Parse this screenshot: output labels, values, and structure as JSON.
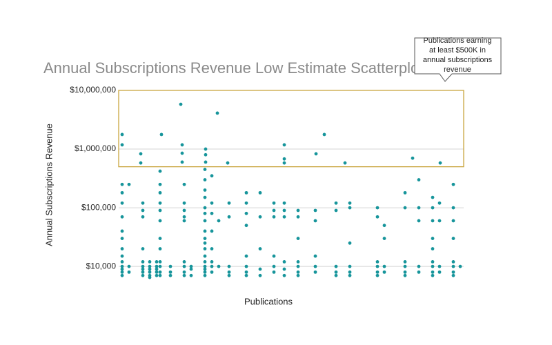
{
  "chart_data": {
    "type": "scatter",
    "title": "Annual Subscriptions Revenue Low Estimate Scatterplot",
    "x_label": "Publications",
    "y_label": "Annual Subscriptions Revenue",
    "annotation": {
      "text": "Publications earning at least $500K in annual subscriptions revenue",
      "ylim": [
        500000,
        10000000
      ]
    },
    "log_y": true,
    "grid": true,
    "xlim": [
      0,
      100
    ],
    "ylim": [
      6000,
      10000000
    ],
    "yticks": [
      {
        "value": 10000,
        "label": "$10,000"
      },
      {
        "value": 100000,
        "label": "$100,000"
      },
      {
        "value": 1000000,
        "label": "$1,000,000"
      },
      {
        "value": 10000000,
        "label": "$10,000,000"
      }
    ],
    "series": [
      {
        "name": "Publications",
        "color": "#17959b",
        "x": [
          1,
          1,
          6.4,
          6.4,
          12.4,
          18,
          18.4,
          18.4,
          18.4,
          25.2,
          25.2,
          25.2,
          28.6,
          31.6,
          48,
          48,
          48,
          57.2,
          59.6,
          65.6,
          85.2,
          93.2,
          1,
          1,
          1,
          1,
          1,
          1,
          1,
          1,
          1,
          1,
          1,
          1,
          1,
          3,
          3,
          3,
          7,
          7,
          7,
          7,
          7,
          7,
          7,
          7,
          7,
          9,
          9,
          9,
          9,
          9,
          9,
          11,
          11,
          11,
          11,
          11,
          12,
          12,
          12,
          12,
          12,
          12,
          12,
          12,
          12,
          12,
          12,
          12,
          15,
          15,
          15,
          19,
          19,
          19,
          19,
          19,
          19,
          19,
          19,
          19,
          21,
          21,
          21,
          25,
          25,
          25,
          25,
          25,
          25,
          25,
          25,
          25,
          25,
          25,
          25,
          25,
          25,
          25,
          25,
          25,
          27,
          27,
          27,
          27,
          27,
          27,
          27,
          27,
          29,
          29,
          32,
          32,
          32,
          32,
          32,
          37,
          37,
          37,
          37,
          37,
          37,
          37,
          37,
          41,
          41,
          41,
          41,
          41,
          45,
          45,
          45,
          45,
          45,
          45,
          48,
          48,
          48,
          48,
          48,
          48,
          52,
          52,
          52,
          52,
          52,
          52,
          52,
          57,
          57,
          57,
          57,
          57,
          63,
          63,
          63,
          63,
          63,
          67,
          67,
          67,
          67,
          67,
          67,
          75,
          75,
          75,
          75,
          75,
          75,
          77,
          77,
          77,
          77,
          83,
          83,
          83,
          83,
          83,
          83,
          87,
          87,
          87,
          87,
          87,
          91,
          91,
          91,
          91,
          91,
          91,
          91,
          91,
          91,
          93,
          93,
          93,
          93,
          97,
          97,
          97,
          97,
          97,
          97,
          97,
          97,
          99
        ],
        "values": [
          1770000,
          1180000,
          830000,
          580000,
          1770000,
          5800000,
          1180000,
          850000,
          600000,
          1000000,
          800000,
          600000,
          4100000,
          580000,
          1180000,
          680000,
          580000,
          830000,
          1770000,
          580000,
          700000,
          580000,
          250000,
          180000,
          120000,
          70000,
          40000,
          30000,
          20000,
          15000,
          12000,
          10000,
          9000,
          8000,
          7000,
          250000,
          10000,
          8000,
          120000,
          90000,
          70000,
          20000,
          12000,
          10000,
          9000,
          8000,
          7000,
          12000,
          10000,
          9000,
          8000,
          7000,
          6500,
          12000,
          10000,
          9000,
          8000,
          7000,
          420000,
          250000,
          180000,
          120000,
          90000,
          60000,
          30000,
          20000,
          12000,
          10000,
          8000,
          7000,
          10000,
          8000,
          7000,
          250000,
          120000,
          90000,
          70000,
          60000,
          12000,
          10000,
          8000,
          7000,
          10000,
          9000,
          7000,
          450000,
          300000,
          200000,
          150000,
          100000,
          80000,
          60000,
          40000,
          30000,
          25000,
          20000,
          15000,
          12000,
          10000,
          9000,
          8000,
          7000,
          350000,
          120000,
          80000,
          40000,
          20000,
          12000,
          10000,
          8000,
          60000,
          10000,
          120000,
          70000,
          10000,
          8000,
          7000,
          180000,
          120000,
          80000,
          50000,
          15000,
          10000,
          8000,
          7000,
          180000,
          70000,
          20000,
          9000,
          7000,
          120000,
          90000,
          70000,
          15000,
          10000,
          8000,
          120000,
          90000,
          70000,
          12000,
          9000,
          7000,
          90000,
          70000,
          30000,
          12000,
          10000,
          8000,
          7000,
          90000,
          60000,
          15000,
          10000,
          8000,
          120000,
          90000,
          10000,
          8000,
          7000,
          120000,
          100000,
          25000,
          10000,
          8000,
          7000,
          100000,
          70000,
          12000,
          10000,
          8000,
          7000,
          50000,
          30000,
          10000,
          8000,
          180000,
          100000,
          12000,
          10000,
          8000,
          7000,
          300000,
          100000,
          60000,
          10000,
          8000,
          150000,
          100000,
          60000,
          30000,
          20000,
          12000,
          10000,
          8000,
          7000,
          120000,
          60000,
          10000,
          8000,
          250000,
          100000,
          60000,
          30000,
          12000,
          10000,
          8000,
          7000,
          10000
        ]
      }
    ]
  }
}
